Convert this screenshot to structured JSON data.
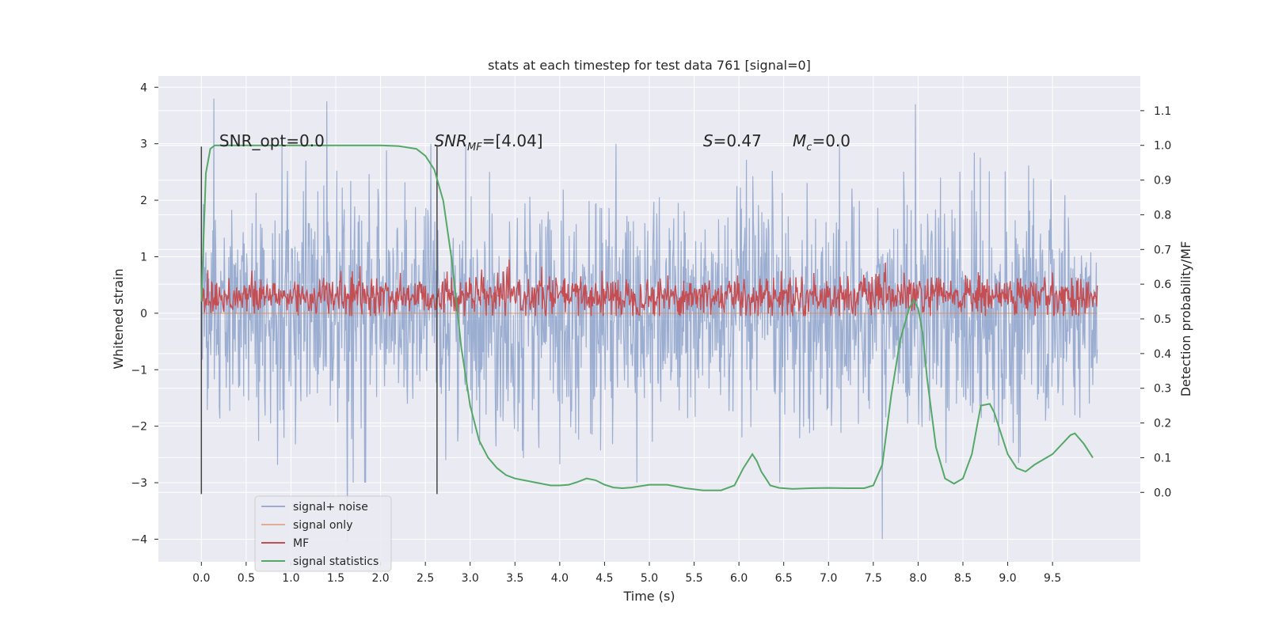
{
  "chart_data": {
    "type": "line",
    "title": "stats at each timestep for test data 761 [signal=0]",
    "xlabel": "Time (s)",
    "ylabel": "Whitened strain",
    "ylabel_right": "Detection probability/MF",
    "xlim": [
      -0.48,
      10.48
    ],
    "ylim": [
      -4.4,
      4.2
    ],
    "ylim_right": [
      -0.2,
      1.2
    ],
    "x_ticks": [
      "0.0",
      "0.5",
      "1.0",
      "1.5",
      "2.0",
      "2.5",
      "3.0",
      "3.5",
      "4.0",
      "4.5",
      "5.0",
      "5.5",
      "6.0",
      "6.5",
      "7.0",
      "7.5",
      "8.0",
      "8.5",
      "9.0",
      "9.5"
    ],
    "y_ticks": [
      "4",
      "3",
      "2",
      "1",
      "0",
      "−1",
      "−2",
      "−3",
      "−4"
    ],
    "y_ticks_right": [
      "1.1",
      "1.0",
      "0.9",
      "0.8",
      "0.7",
      "0.6",
      "0.5",
      "0.4",
      "0.3",
      "0.2",
      "0.1",
      "0.0"
    ],
    "grid": true,
    "legend_position": "lower-left",
    "colors": {
      "signal_noise": "#4c72b0",
      "signal_only": "#dd8452",
      "mf": "#c44e52",
      "signal_statistics": "#55a868",
      "background": "#eaeaf2",
      "grid": "#ffffff",
      "vline": "#444444"
    },
    "annotations": [
      {
        "text": "SNR_opt=0.0",
        "x": 0.2,
        "y": 2.95
      },
      {
        "text": "SNR_MF=[4.04]",
        "x": 2.6,
        "y": 2.95
      },
      {
        "text": "S=0.47",
        "x": 5.6,
        "y": 2.95
      },
      {
        "text": "M_c=0.0",
        "x": 6.6,
        "y": 2.95
      }
    ],
    "vlines": [
      {
        "x": 0.0,
        "y_range": [
          -3.2,
          2.95
        ]
      },
      {
        "x": 2.63,
        "y_range": [
          -3.2,
          2.95
        ]
      }
    ],
    "series": [
      {
        "name": "signal+ noise",
        "axis": "left",
        "description_points": {
          "x_range": [
            0.0,
            10.0
          ],
          "envelope_min": -3.0,
          "envelope_max": 3.0,
          "peaks": [
            [
              0.14,
              3.8
            ],
            [
              1.4,
              3.75
            ],
            [
              7.97,
              3.7
            ],
            [
              7.6,
              -4.0
            ],
            [
              1.63,
              -4.05
            ]
          ]
        }
      },
      {
        "name": "signal only",
        "axis": "left",
        "x": [
          0.0,
          10.0
        ],
        "y": [
          0.0,
          0.0
        ]
      },
      {
        "name": "MF",
        "axis": "left",
        "x_range": [
          0.0,
          10.0
        ],
        "level": 0.3,
        "envelope_min": -0.05,
        "envelope_max": 0.95
      },
      {
        "name": "signal statistics",
        "axis": "right",
        "x": [
          0.0,
          0.05,
          0.1,
          0.15,
          0.2,
          0.3,
          0.5,
          1.0,
          1.5,
          2.0,
          2.2,
          2.4,
          2.5,
          2.6,
          2.7,
          2.8,
          2.9,
          3.0,
          3.1,
          3.2,
          3.3,
          3.4,
          3.5,
          3.7,
          3.9,
          4.0,
          4.1,
          4.2,
          4.3,
          4.4,
          4.5,
          4.6,
          4.7,
          4.8,
          5.0,
          5.2,
          5.4,
          5.6,
          5.8,
          5.95,
          6.05,
          6.15,
          6.2,
          6.25,
          6.3,
          6.35,
          6.45,
          6.6,
          6.8,
          7.0,
          7.2,
          7.4,
          7.5,
          7.6,
          7.7,
          7.8,
          7.9,
          7.95,
          8.0,
          8.05,
          8.1,
          8.2,
          8.3,
          8.4,
          8.5,
          8.6,
          8.7,
          8.8,
          8.85,
          8.9,
          9.0,
          9.1,
          9.2,
          9.3,
          9.5,
          9.7,
          9.75,
          9.85,
          9.95
        ],
        "y": [
          0.55,
          0.92,
          0.99,
          1.0,
          1.0,
          1.0,
          1.0,
          1.0,
          1.0,
          1.0,
          0.998,
          0.99,
          0.97,
          0.93,
          0.84,
          0.66,
          0.42,
          0.25,
          0.15,
          0.1,
          0.07,
          0.05,
          0.04,
          0.03,
          0.02,
          0.02,
          0.022,
          0.03,
          0.04,
          0.035,
          0.022,
          0.014,
          0.012,
          0.014,
          0.022,
          0.022,
          0.012,
          0.006,
          0.006,
          0.02,
          0.07,
          0.11,
          0.09,
          0.06,
          0.04,
          0.02,
          0.013,
          0.01,
          0.012,
          0.013,
          0.012,
          0.012,
          0.02,
          0.08,
          0.28,
          0.44,
          0.53,
          0.555,
          0.53,
          0.46,
          0.33,
          0.13,
          0.04,
          0.025,
          0.04,
          0.11,
          0.25,
          0.255,
          0.23,
          0.19,
          0.11,
          0.07,
          0.06,
          0.08,
          0.11,
          0.165,
          0.17,
          0.14,
          0.1
        ]
      }
    ],
    "legend": [
      "signal+ noise",
      "signal only",
      "MF",
      "signal statistics"
    ]
  }
}
